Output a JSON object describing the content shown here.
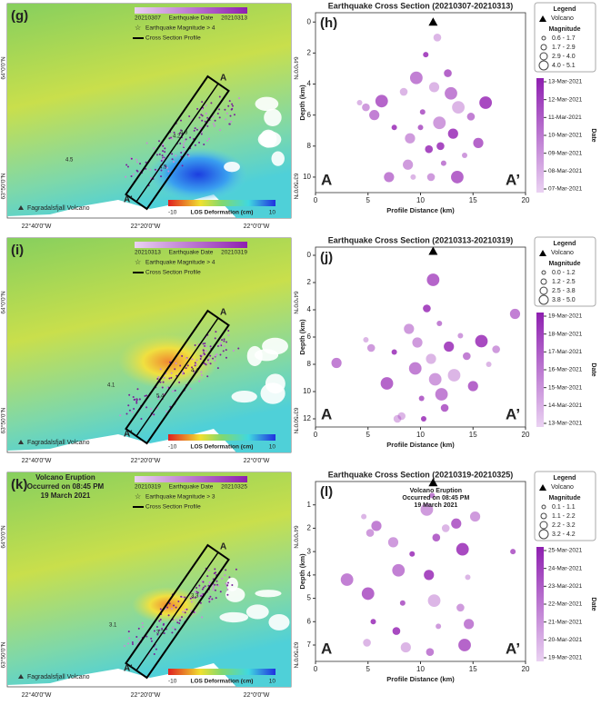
{
  "maps": [
    {
      "label": "(g)",
      "colorbar_dates": [
        "20210307",
        "20210313"
      ],
      "colorbar_title": "Earthquake Date",
      "legend": [
        "Earthquake Magnitude > 4",
        "Cross Section Profile"
      ],
      "lat_labels": [
        "64°0'0\"N",
        "63°50'0\"N"
      ],
      "lon_labels": [
        "22°40'0\"W",
        "22°20'0\"W",
        "22°0'0\"W"
      ],
      "volcano": "Fagradalsfjall Volcano",
      "deformation_title": "LOS Deformation  (cm)",
      "deformation_range": [
        -10,
        10
      ],
      "profile_labels": [
        "A",
        "A'"
      ],
      "magnitude_labels": [
        "4.5",
        "4.2",
        "4.3",
        "4.5"
      ]
    },
    {
      "label": "(i)",
      "colorbar_dates": [
        "20210313",
        "20210319"
      ],
      "colorbar_title": "Earthquake Date",
      "legend": [
        "Earthquake Magnitude > 4",
        "Cross Section Profile"
      ],
      "lat_labels": [
        "64°0'0\"N",
        "63°50'0\"N"
      ],
      "lon_labels": [
        "22°40'0\"W",
        "22°20'0\"W",
        "22°0'0\"W"
      ],
      "volcano": "Fagradalsfjall Volcano",
      "deformation_title": "LOS Deformation  (cm)",
      "deformation_range": [
        -10,
        10
      ],
      "profile_labels": [
        "A",
        "A'"
      ],
      "magnitude_labels": [
        "4.1",
        "5.4",
        "4.4"
      ]
    },
    {
      "label": "(k)",
      "colorbar_dates": [
        "20210319",
        "20210325"
      ],
      "colorbar_title": "Earthquake Date",
      "legend": [
        "Earthquake Magnitude > 3",
        "Cross Section Profile"
      ],
      "annotation": [
        "Volcano Eruption",
        "Occurred on 08:45 PM",
        "19 March 2021"
      ],
      "lat_labels": [
        "64°0'0\"N",
        "63°50'0\"N"
      ],
      "lon_labels": [
        "22°40'0\"W",
        "22°20'0\"W",
        "22°0'0\"W"
      ],
      "volcano": "Fagradalsfjall Volcano",
      "deformation_title": "LOS Deformation  (cm)",
      "deformation_range": [
        -10,
        10
      ],
      "profile_labels": [
        "A",
        "A'"
      ],
      "magnitude_labels": [
        "3.1",
        "3.2",
        "3.3"
      ]
    }
  ],
  "chart_data": [
    {
      "type": "scatter",
      "panel": "(h)",
      "title": "Earthquake Cross Section (20210307-20210313)",
      "x_label": "Profile Distance (km)",
      "y_label": "Depth (km)",
      "xlim": [
        0,
        20
      ],
      "xticks": [
        0,
        5,
        10,
        15,
        20
      ],
      "ylim": [
        -0.6,
        11
      ],
      "yticks": [
        0,
        2,
        4,
        6,
        8,
        10
      ],
      "y_inverted": true,
      "color": "#9b2fb8",
      "x": [
        4.2,
        4.8,
        5.6,
        6.3,
        7.5,
        8.4,
        9.0,
        9.6,
        10.2,
        10.8,
        11.3,
        11.8,
        12.2,
        12.6,
        13.1,
        13.6,
        14.2,
        14.8,
        15.5,
        16.2,
        9.3,
        11.0,
        7.0,
        13.5,
        10.5,
        11.6,
        8.8,
        12.9,
        10.0,
        11.9
      ],
      "values": [
        5.2,
        5.5,
        6.0,
        5.1,
        6.8,
        4.5,
        7.5,
        3.6,
        5.8,
        8.2,
        4.2,
        6.5,
        9.1,
        3.3,
        7.2,
        5.5,
        8.6,
        6.1,
        7.8,
        5.2,
        10.0,
        10.0,
        10.0,
        10.0,
        2.1,
        1.0,
        9.2,
        4.6,
        6.8,
        8.0
      ],
      "volcano": {
        "x": 11.2,
        "depth": 0
      },
      "section_labels": [
        "A",
        "A’"
      ],
      "legend": {
        "title": "Legend",
        "volcano": "Volcano",
        "magnitude_title": "Magnitude",
        "magnitude_bins": [
          "0.6 - 1.7",
          "1.7 - 2.9",
          "2.9 - 4.0",
          "4.0 - 5.1"
        ]
      },
      "colorbar": {
        "label": "Date",
        "ticks": [
          "13-Mar-2021",
          "12-Mar-2021",
          "11-Mar-2021",
          "10-Mar-2021",
          "09-Mar-2021",
          "08-Mar-2021",
          "07-Mar-2021"
        ]
      }
    },
    {
      "type": "scatter",
      "panel": "(j)",
      "title": "Earthquake Cross Section (20210313-20210319)",
      "x_label": "Profile Distance (km)",
      "y_label": "Depth (km)",
      "xlim": [
        0,
        20
      ],
      "xticks": [
        0,
        5,
        10,
        15,
        20
      ],
      "ylim": [
        -0.6,
        12.6
      ],
      "yticks": [
        0,
        2,
        4,
        6,
        8,
        10,
        12
      ],
      "y_inverted": true,
      "color": "#9b2fb8",
      "x": [
        4.8,
        5.3,
        2.0,
        6.8,
        7.5,
        8.2,
        8.9,
        9.5,
        10.1,
        10.6,
        11.0,
        11.4,
        11.8,
        12.3,
        12.7,
        13.2,
        13.8,
        14.4,
        15.0,
        15.8,
        16.5,
        17.2,
        19.0,
        11.2,
        10.3,
        7.8,
        9.7,
        12.0
      ],
      "values": [
        6.2,
        6.8,
        7.9,
        9.4,
        7.1,
        11.8,
        5.4,
        8.3,
        10.5,
        3.9,
        7.6,
        9.1,
        5.0,
        11.2,
        6.7,
        8.8,
        5.9,
        7.4,
        9.6,
        6.3,
        8.0,
        6.9,
        4.3,
        1.8,
        12.0,
        12.0,
        6.4,
        10.2
      ],
      "volcano": {
        "x": 11.2,
        "depth": -0.3
      },
      "section_labels": [
        "A",
        "A’"
      ],
      "legend": {
        "title": "Legend",
        "volcano": "Volcano",
        "magnitude_title": "Magnitude",
        "magnitude_bins": [
          "0.0 - 1.2",
          "1.2 - 2.5",
          "2.5 - 3.8",
          "3.8 - 5.0"
        ]
      },
      "colorbar": {
        "label": "Date",
        "ticks": [
          "19-Mar-2021",
          "18-Mar-2021",
          "17-Mar-2021",
          "16-Mar-2021",
          "15-Mar-2021",
          "14-Mar-2021",
          "13-Mar-2021"
        ]
      }
    },
    {
      "type": "scatter",
      "panel": "(l)",
      "title": "Earthquake Cross Section (20210319-20210325)",
      "x_label": "Profile Distance (km)",
      "y_label": "Depth (km)",
      "xlim": [
        0,
        20
      ],
      "xticks": [
        0,
        5,
        10,
        15,
        20
      ],
      "ylim": [
        0,
        7.7
      ],
      "yticks": [
        1,
        2,
        3,
        4,
        5,
        6,
        7
      ],
      "y_inverted": true,
      "color": "#9b2fb8",
      "x": [
        4.6,
        5.2,
        5.8,
        5.0,
        5.5,
        4.9,
        7.4,
        7.9,
        8.3,
        7.7,
        8.6,
        10.6,
        11.1,
        11.5,
        10.8,
        11.3,
        11.7,
        10.9,
        13.4,
        14.0,
        14.5,
        13.8,
        14.6,
        14.2,
        9.2,
        12.4,
        15.2,
        3.0,
        18.8
      ],
      "values": [
        1.5,
        2.2,
        1.9,
        4.8,
        6.0,
        6.9,
        2.6,
        3.8,
        5.2,
        6.4,
        7.1,
        1.2,
        0.6,
        2.4,
        4.0,
        5.1,
        6.2,
        7.3,
        1.8,
        2.9,
        4.1,
        5.4,
        6.1,
        7.0,
        3.1,
        2.0,
        1.5,
        4.2,
        3.0
      ],
      "volcano": {
        "x": 11.2,
        "depth": 0.05
      },
      "section_labels": [
        "A",
        "A’"
      ],
      "annotation": [
        "Volcano Eruption",
        "Occurred on 08:45 PM",
        "19 March 2021"
      ],
      "legend": {
        "title": "Legend",
        "volcano": "Volcano",
        "magnitude_title": "Magnitude",
        "magnitude_bins": [
          "0.1 - 1.1",
          "1.1 - 2.2",
          "2.2 - 3.2",
          "3.2 - 4.2"
        ]
      },
      "colorbar": {
        "label": "Date",
        "ticks": [
          "25-Mar-2021",
          "24-Mar-2021",
          "23-Mar-2021",
          "22-Mar-2021",
          "21-Mar-2021",
          "20-Mar-2021",
          "19-Mar-2021"
        ]
      }
    }
  ]
}
